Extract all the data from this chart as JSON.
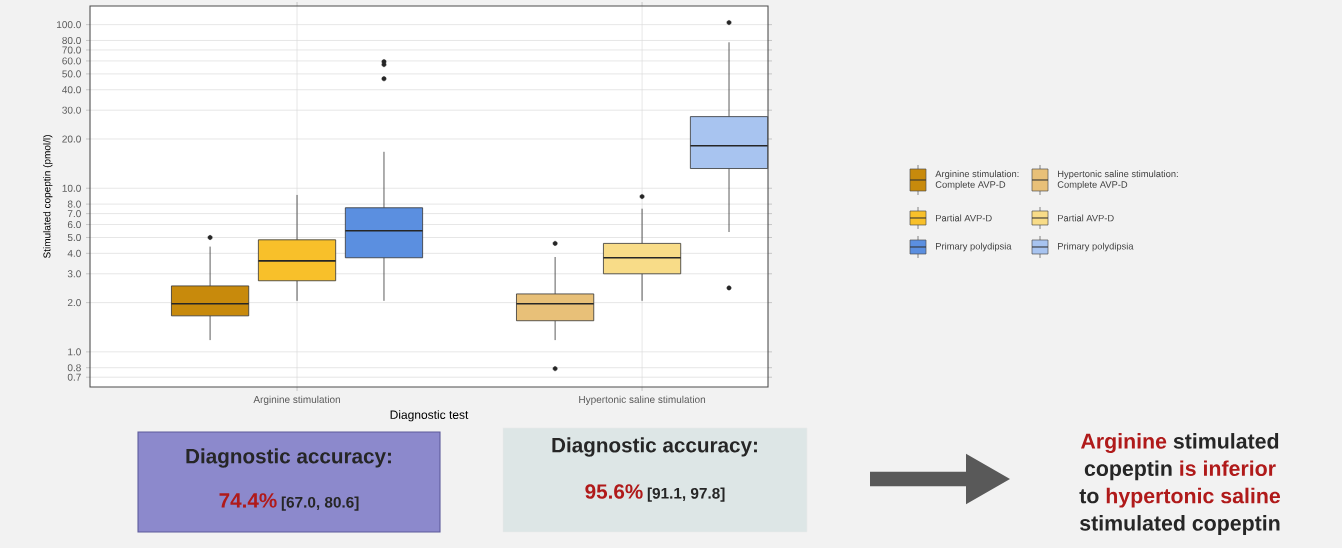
{
  "chart_data": {
    "type": "box",
    "xlabel": "Diagnostic test",
    "ylabel": "Stimulated copeptin (pmol/l)",
    "categories": [
      "Arginine stimulation",
      "Hypertonic saline stimulation"
    ],
    "log": true,
    "grid": true,
    "legend": "right",
    "ylim": [
      0.61,
      130
    ],
    "yticks": [
      {
        "value": 0.7,
        "label": "0.7"
      },
      {
        "value": 0.8,
        "label": "0.8"
      },
      {
        "value": 1,
        "label": "1.0"
      },
      {
        "value": 2,
        "label": "2.0"
      },
      {
        "value": 3,
        "label": "3.0"
      },
      {
        "value": 4,
        "label": "4.0"
      },
      {
        "value": 5,
        "label": "5.0"
      },
      {
        "value": 6,
        "label": "6.0"
      },
      {
        "value": 7,
        "label": "7.0"
      },
      {
        "value": 8,
        "label": "8.0"
      },
      {
        "value": 10,
        "label": "10.0"
      },
      {
        "value": 20,
        "label": "20.0"
      },
      {
        "value": 30,
        "label": "30.0"
      },
      {
        "value": 40,
        "label": "40.0"
      },
      {
        "value": 50,
        "label": "50.0"
      },
      {
        "value": 60,
        "label": "60.0"
      },
      {
        "value": 70,
        "label": "70.0"
      },
      {
        "value": 80,
        "label": "80.0"
      },
      {
        "value": 100,
        "label": "100.0"
      }
    ],
    "series": [
      {
        "name": "Arginine stimulation: Complete AVP-D",
        "color": "#c88a0c",
        "boxes": [
          {
            "low": 1.18,
            "q1": 1.66,
            "median": 1.97,
            "q3": 2.53,
            "high": 4.4,
            "outliers": [
              5.0
            ]
          },
          null
        ]
      },
      {
        "name": "Partial AVP-D",
        "color": "#f8c02a",
        "boxes": [
          {
            "low": 2.05,
            "q1": 2.72,
            "median": 3.6,
            "q3": 4.84,
            "high": 9.1
          },
          null
        ]
      },
      {
        "name": "Primary polydipsia",
        "color": "#5b8fe0",
        "boxes": [
          {
            "low": 2.05,
            "q1": 3.76,
            "median": 5.5,
            "q3": 7.6,
            "high": 16.7,
            "outliers": [
              46.7,
              57,
              59.4
            ]
          },
          null
        ]
      },
      {
        "name": "Hypertonic saline stimulation: Complete AVP-D",
        "color": "#e8c078",
        "boxes": [
          null,
          {
            "low": 1.18,
            "q1": 1.55,
            "median": 1.97,
            "q3": 2.26,
            "high": 3.8,
            "outliers": [
              0.79,
              4.6
            ]
          }
        ]
      },
      {
        "name": "Partial AVP-D",
        "color": "#f8dc88",
        "boxes": [
          null,
          {
            "low": 2.05,
            "q1": 3.0,
            "median": 3.76,
            "q3": 4.6,
            "high": 7.5,
            "outliers": [
              8.9
            ]
          }
        ]
      },
      {
        "name": "Primary polydipsia",
        "color": "#a8c4f0",
        "boxes": [
          null,
          {
            "low": 5.4,
            "q1": 13.2,
            "median": 18.2,
            "q3": 27.4,
            "high": 78,
            "outliers": [
              2.46,
              103
            ]
          }
        ]
      }
    ],
    "annotations": [
      "Diagnostic accuracy:",
      "74.4%",
      "[67.0, 80.6]",
      "Diagnostic accuracy:",
      "95.6%",
      "[91.1, 97.8]",
      "Arginine",
      "stimulated",
      "copeptin",
      "is inferior",
      "to",
      "hypertonic saline",
      "stimulated copeptin"
    ]
  }
}
